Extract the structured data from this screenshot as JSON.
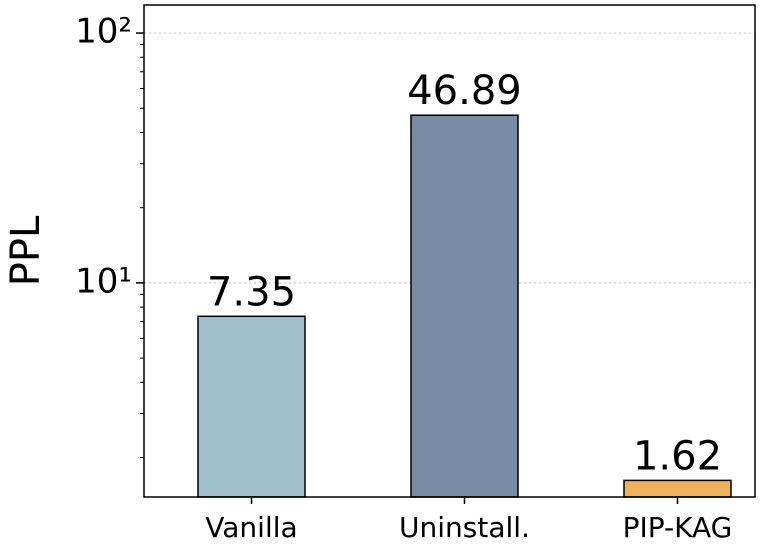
{
  "chart_data": {
    "type": "bar",
    "ylabel": "PPL",
    "log_y": true,
    "categories": [
      "Vanilla",
      "Uninstall.",
      "PIP-KAG"
    ],
    "values": [
      7.35,
      46.89,
      1.62
    ],
    "colors": [
      "#a2bfcd",
      "#778ca4",
      "#f0b05c"
    ],
    "ylim": [
      1.39,
      129.5
    ],
    "yticks": [
      {
        "value": 10,
        "label": "10¹"
      },
      {
        "value": 100,
        "label": "10²"
      }
    ],
    "yminorticks": [
      2,
      3,
      4,
      5,
      6,
      7,
      8,
      9,
      20,
      30,
      40,
      50,
      60,
      70,
      80,
      90
    ],
    "grid": true
  }
}
